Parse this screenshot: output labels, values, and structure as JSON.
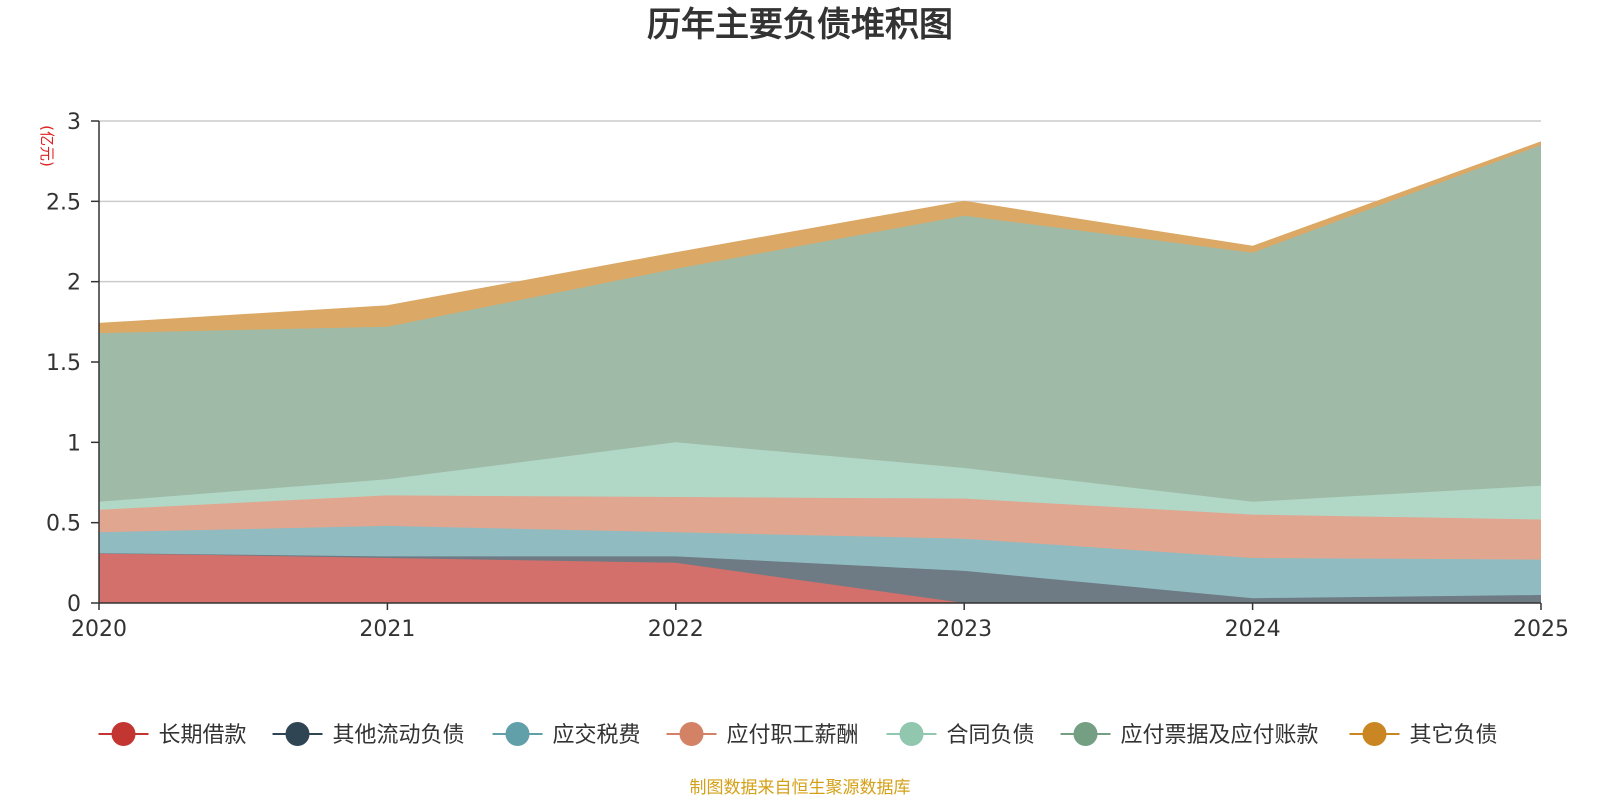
{
  "chart_data": {
    "type": "area",
    "stacked": true,
    "title": "历年主要负债堆积图",
    "unit_label": "(亿元)",
    "source": "制图数据来自恒生聚源数据库",
    "categories": [
      "2020",
      "2021",
      "2022",
      "2023",
      "2024",
      "2025"
    ],
    "ylim": [
      0,
      3
    ],
    "yticks": [
      0,
      0.5,
      1,
      1.5,
      2,
      2.5,
      3
    ],
    "ytick_labels": [
      "0",
      "0.5",
      "1",
      "1.5",
      "2",
      "2.5",
      "3"
    ],
    "grid": true,
    "legend_position": "bottom",
    "series": [
      {
        "name": "长期借款",
        "color": "#c23531",
        "fill": "#d4706b",
        "values": [
          0.31,
          0.28,
          0.25,
          0.0,
          0.0,
          0.0
        ]
      },
      {
        "name": "其他流动负债",
        "color": "#2f4554",
        "fill": "#6e7a84",
        "values": [
          0.0,
          0.01,
          0.04,
          0.2,
          0.03,
          0.05
        ]
      },
      {
        "name": "应交税费",
        "color": "#61a0a8",
        "fill": "#90bcc1",
        "values": [
          0.13,
          0.19,
          0.15,
          0.2,
          0.25,
          0.22
        ]
      },
      {
        "name": "应付职工薪酬",
        "color": "#d48265",
        "fill": "#e0a690",
        "values": [
          0.14,
          0.19,
          0.22,
          0.25,
          0.27,
          0.25
        ]
      },
      {
        "name": "合同负债",
        "color": "#91c7ae",
        "fill": "#b1d8c6",
        "values": [
          0.05,
          0.1,
          0.34,
          0.19,
          0.08,
          0.21
        ]
      },
      {
        "name": "应付票据及应付账款",
        "color": "#749f83",
        "fill": "#9fbba8",
        "values": [
          1.05,
          0.95,
          1.08,
          1.57,
          1.55,
          2.12
        ]
      },
      {
        "name": "其它负债",
        "color": "#ca8622",
        "fill": "#dba865",
        "values": [
          0.06,
          0.13,
          0.1,
          0.09,
          0.04,
          0.02
        ]
      }
    ]
  }
}
